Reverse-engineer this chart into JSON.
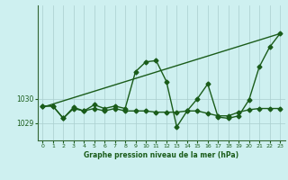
{
  "title": "Graphe pression niveau de la mer (hPa)",
  "background_color": "#cef0f0",
  "plot_bg_color": "#cef0f0",
  "line_color": "#1a5c1a",
  "grid_color": "#aacece",
  "axis_color": "#336633",
  "text_color": "#1a5c1a",
  "xlim": [
    -0.5,
    23.5
  ],
  "ylim": [
    1028.3,
    1033.8
  ],
  "yticks": [
    1029,
    1030
  ],
  "xticks": [
    0,
    1,
    2,
    3,
    4,
    5,
    6,
    7,
    8,
    9,
    10,
    11,
    12,
    13,
    14,
    15,
    16,
    17,
    18,
    19,
    20,
    21,
    22,
    23
  ],
  "series2_x": [
    0,
    1,
    2,
    3,
    4,
    5,
    6,
    7,
    8,
    9,
    10,
    11,
    12,
    13,
    14,
    15,
    16,
    17,
    18,
    19,
    20,
    21,
    22,
    23
  ],
  "series2_y": [
    1029.7,
    1029.7,
    1029.2,
    1029.65,
    1029.5,
    1029.75,
    1029.6,
    1029.7,
    1029.6,
    1031.1,
    1031.5,
    1031.55,
    1030.7,
    1028.85,
    1029.5,
    1030.0,
    1030.6,
    1029.25,
    1029.2,
    1029.3,
    1029.95,
    1031.3,
    1032.1,
    1032.65
  ],
  "series1_x": [
    0,
    1,
    2,
    3,
    4,
    5,
    6,
    7,
    8,
    9,
    10,
    11,
    12,
    13,
    14,
    15,
    16,
    17,
    18,
    19,
    20,
    21,
    22,
    23
  ],
  "series1_y": [
    1029.7,
    1029.7,
    1029.2,
    1029.6,
    1029.5,
    1029.6,
    1029.5,
    1029.6,
    1029.5,
    1029.5,
    1029.5,
    1029.45,
    1029.45,
    1029.45,
    1029.5,
    1029.5,
    1029.4,
    1029.3,
    1029.3,
    1029.45,
    1029.55,
    1029.6,
    1029.6,
    1029.6
  ],
  "trend_x": [
    0,
    23
  ],
  "trend_y": [
    1029.65,
    1032.65
  ],
  "marker": "D",
  "markersize": 2.5,
  "linewidth": 1.0
}
